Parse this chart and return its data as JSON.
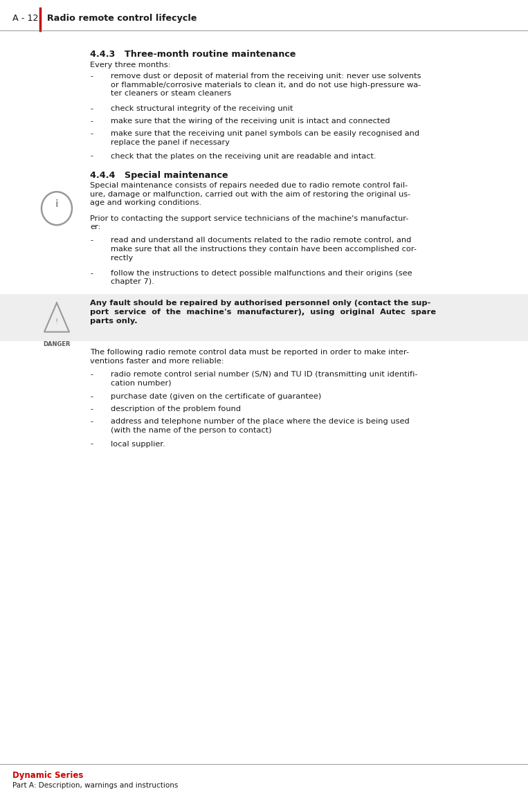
{
  "header_number": "A - 12",
  "header_title": "Radio remote control lifecycle",
  "header_line_color": "#cc0000",
  "header_text_color": "#1a1a1a",
  "footer_series": "Dynamic Series",
  "footer_series_color": "#cc0000",
  "footer_sub": "Part A: Description, warnings and instructions",
  "footer_text_color": "#1a1a1a",
  "bg_color": "#ffffff",
  "section443_title": "4.4.3   Three-month routine maintenance",
  "section443_intro": "Every three months:",
  "section443_bullets": [
    "remove dust or deposit of material from the receiving unit: never use solvents\nor flammable/corrosive materials to clean it, and do not use high-pressure wa-\nter cleaners or steam cleaners",
    "check structural integrity of the receiving unit",
    "make sure that the wiring of the receiving unit is intact and connected",
    "make sure that the receiving unit panel symbols can be easily recognised and\nreplace the panel if necessary",
    "check that the plates on the receiving unit are readable and intact."
  ],
  "section444_title": "4.4.4   Special maintenance",
  "section444_para1": "Special maintenance consists of repairs needed due to radio remote control fail-\nure, damage or malfunction, carried out with the aim of restoring the original us-\nage and working conditions.",
  "section444_para2": "Prior to contacting the support service technicians of the machine's manufactur-\ner:",
  "section444_bullets": [
    "read and understand all documents related to the radio remote control, and\nmake sure that all the instructions they contain have been accomplished cor-\nrectly",
    "follow the instructions to detect possible malfunctions and their origins (see\nchapter 7)."
  ],
  "danger_text": "Any fault should be repaired by authorised personnel only (contact the sup-\nport  service  of  the  machine's  manufacturer),  using  original  Autec  spare\nparts only.",
  "section444_para3": "The following radio remote control data must be reported in order to make inter-\nventions faster and more reliable:",
  "section444_bullets2": [
    "radio remote control serial number (S/N) and TU ID (transmitting unit identifi-\ncation number)",
    "purchase date (given on the certificate of guarantee)",
    "description of the problem found",
    "address and telephone number of the place where the device is being used\n(with the name of the person to contact)",
    "local supplier."
  ],
  "text_color": "#1a1a1a",
  "body_font_size": 8.2,
  "section_font_size": 9.2
}
